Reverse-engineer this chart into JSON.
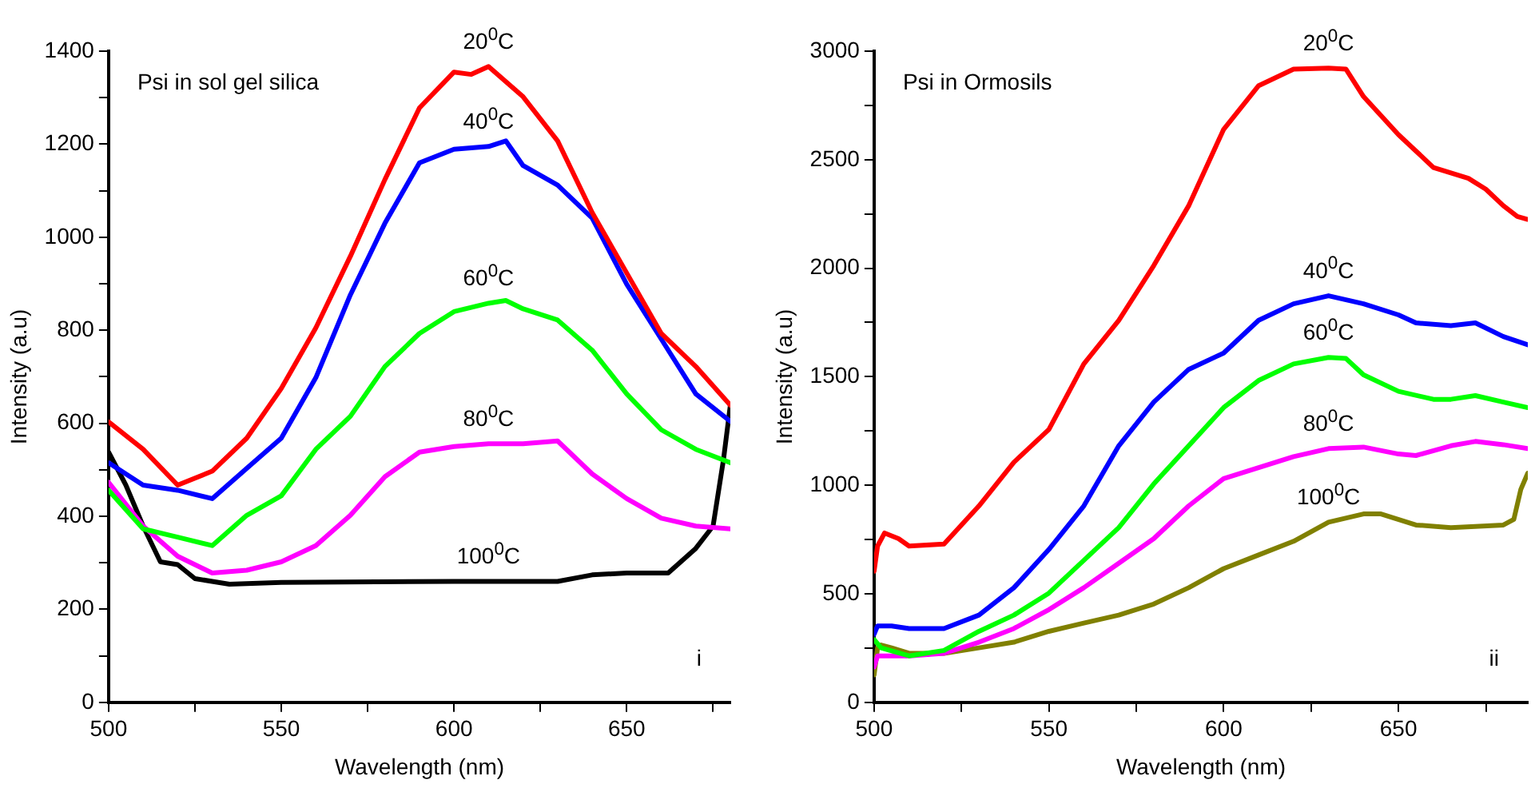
{
  "chart_data": [
    {
      "type": "line",
      "title": "Psi in sol gel silica",
      "xlabel": "Wavelength (nm)",
      "ylabel": "Intensity (a.u)",
      "marker": "none",
      "line_style": "solid",
      "xlim": [
        500,
        680
      ],
      "xticks": [
        500,
        {
          "value": 525,
          "label": null
        },
        550,
        {
          "value": 575,
          "label": null
        },
        600,
        {
          "value": 625,
          "label": null
        },
        650,
        {
          "value": 675,
          "label": null
        }
      ],
      "ylim": [
        0,
        1400
      ],
      "yticks": [
        0,
        {
          "value": 100,
          "label": null
        },
        200,
        {
          "value": 300,
          "label": null
        },
        400,
        {
          "value": 500,
          "label": null
        },
        600,
        {
          "value": 700,
          "label": null
        },
        800,
        {
          "value": 900,
          "label": null
        },
        1000,
        {
          "value": 1100,
          "label": null
        },
        1200,
        {
          "value": 1300,
          "label": null
        },
        1400
      ],
      "series": [
        {
          "name": "20$^{0}$C",
          "color": "#ff0000",
          "x": [
            500,
            510,
            520,
            530,
            540,
            550,
            560,
            570,
            580,
            590,
            600,
            605,
            610,
            620,
            630,
            640,
            650,
            660,
            670,
            680
          ],
          "values": [
            603,
            544,
            467,
            497,
            568,
            675,
            805,
            959,
            1124,
            1278,
            1355,
            1350,
            1367,
            1302,
            1207,
            1053,
            923,
            793,
            722,
            639
          ]
        },
        {
          "name": "40$^{0}$C",
          "color": "#0000ff",
          "x": [
            500,
            510,
            520,
            530,
            540,
            550,
            560,
            570,
            580,
            590,
            600,
            610,
            615,
            620,
            630,
            640,
            650,
            660,
            670,
            680
          ],
          "values": [
            515,
            467,
            456,
            438,
            503,
            568,
            698,
            876,
            1030,
            1160,
            1189,
            1195,
            1207,
            1154,
            1112,
            1041,
            899,
            781,
            663,
            604
          ]
        },
        {
          "name": "60$^{0}$C",
          "color": "#00ff00",
          "x": [
            500,
            510,
            520,
            530,
            540,
            550,
            560,
            570,
            580,
            590,
            600,
            610,
            615,
            620,
            630,
            640,
            650,
            660,
            670,
            680
          ],
          "values": [
            456,
            373,
            355,
            337,
            402,
            444,
            544,
            615,
            722,
            793,
            840,
            858,
            864,
            846,
            822,
            757,
            663,
            586,
            544,
            515
          ]
        },
        {
          "name": "80$^{0}$C",
          "color": "#ff00ff",
          "x": [
            500,
            510,
            520,
            530,
            540,
            550,
            560,
            570,
            580,
            590,
            600,
            610,
            620,
            630,
            640,
            650,
            660,
            670,
            680
          ],
          "values": [
            473,
            379,
            314,
            278,
            284,
            302,
            337,
            402,
            485,
            538,
            550,
            556,
            556,
            562,
            491,
            438,
            396,
            379,
            373
          ]
        },
        {
          "name": "100$^{0}$C",
          "color": "#000000",
          "x": [
            500,
            505,
            510,
            515,
            520,
            525,
            535,
            550,
            600,
            630,
            640,
            650,
            662,
            670,
            675,
            678,
            680
          ],
          "values": [
            538,
            467,
            379,
            302,
            296,
            266,
            254,
            258,
            260,
            260,
            274,
            278,
            278,
            331,
            379,
            521,
            639
          ]
        }
      ],
      "annotations": [
        "i"
      ]
    },
    {
      "type": "line",
      "title": "Psi in Ormosils",
      "xlabel": "Wavelength (nm)",
      "ylabel": "Intensity (a.u)",
      "marker": "none",
      "line_style": "solid",
      "xlim": [
        500,
        687
      ],
      "xticks": [
        500,
        {
          "value": 525,
          "label": null
        },
        550,
        {
          "value": 575,
          "label": null
        },
        600,
        {
          "value": 625,
          "label": null
        },
        650,
        {
          "value": 675,
          "label": null
        }
      ],
      "ylim": [
        0,
        3000
      ],
      "yticks": [
        0,
        {
          "value": 250,
          "label": null
        },
        500,
        {
          "value": 750,
          "label": null
        },
        1000,
        {
          "value": 1250,
          "label": null
        },
        1500,
        {
          "value": 1750,
          "label": null
        },
        2000,
        {
          "value": 2250,
          "label": null
        },
        2500,
        {
          "value": 2750,
          "label": null
        },
        3000
      ],
      "series": [
        {
          "name": "20$^{0}$C",
          "color": "#ff0000",
          "x": [
            500,
            501,
            503,
            507,
            510,
            520,
            530,
            540,
            550,
            560,
            570,
            580,
            590,
            600,
            610,
            620,
            630,
            635,
            640,
            650,
            655,
            660,
            670,
            675,
            680,
            684,
            687
          ],
          "values": [
            604,
            720,
            780,
            754,
            720,
            729,
            905,
            1106,
            1257,
            1559,
            1760,
            2012,
            2288,
            2640,
            2841,
            2917,
            2922,
            2917,
            2791,
            2615,
            2540,
            2464,
            2414,
            2364,
            2288,
            2238,
            2225
          ]
        },
        {
          "name": "40$^{0}$C",
          "color": "#0000ff",
          "x": [
            500,
            501,
            505,
            510,
            520,
            530,
            540,
            550,
            560,
            570,
            580,
            590,
            600,
            610,
            620,
            630,
            640,
            650,
            655,
            665,
            672,
            680,
            687
          ],
          "values": [
            314,
            352,
            352,
            340,
            340,
            402,
            528,
            704,
            905,
            1182,
            1383,
            1534,
            1609,
            1760,
            1836,
            1873,
            1836,
            1785,
            1748,
            1735,
            1748,
            1685,
            1647
          ]
        },
        {
          "name": "60$^{0}$C",
          "color": "#00ff00",
          "x": [
            500,
            502,
            510,
            520,
            530,
            540,
            550,
            560,
            570,
            580,
            590,
            600,
            610,
            620,
            630,
            635,
            640,
            650,
            660,
            665,
            672,
            680,
            687
          ],
          "values": [
            289,
            251,
            214,
            239,
            327,
            402,
            503,
            654,
            805,
            1006,
            1182,
            1358,
            1483,
            1559,
            1589,
            1584,
            1509,
            1433,
            1396,
            1396,
            1413,
            1383,
            1358
          ]
        },
        {
          "name": "80$^{0}$C",
          "color": "#ff00ff",
          "x": [
            500,
            501,
            505,
            510,
            520,
            530,
            540,
            550,
            560,
            570,
            580,
            590,
            600,
            610,
            620,
            630,
            640,
            650,
            655,
            665,
            672,
            680,
            687
          ],
          "values": [
            163,
            214,
            214,
            214,
            226,
            277,
            340,
            427,
            528,
            641,
            754,
            905,
            1031,
            1081,
            1132,
            1169,
            1176,
            1144,
            1137,
            1182,
            1202,
            1187,
            1169
          ]
        },
        {
          "name": "100$^{0}$C",
          "color": "#808000",
          "x": [
            500,
            501,
            502,
            505,
            510,
            520,
            530,
            540,
            550,
            560,
            570,
            580,
            590,
            600,
            610,
            620,
            630,
            640,
            645,
            655,
            665,
            680,
            683,
            685,
            687
          ],
          "values": [
            126,
            251,
            264,
            251,
            226,
            226,
            251,
            277,
            327,
            365,
            402,
            453,
            528,
            616,
            679,
            742,
            830,
            868,
            868,
            817,
            805,
            817,
            843,
            981,
            1056
          ]
        }
      ],
      "annotations": [
        "ii"
      ]
    }
  ]
}
